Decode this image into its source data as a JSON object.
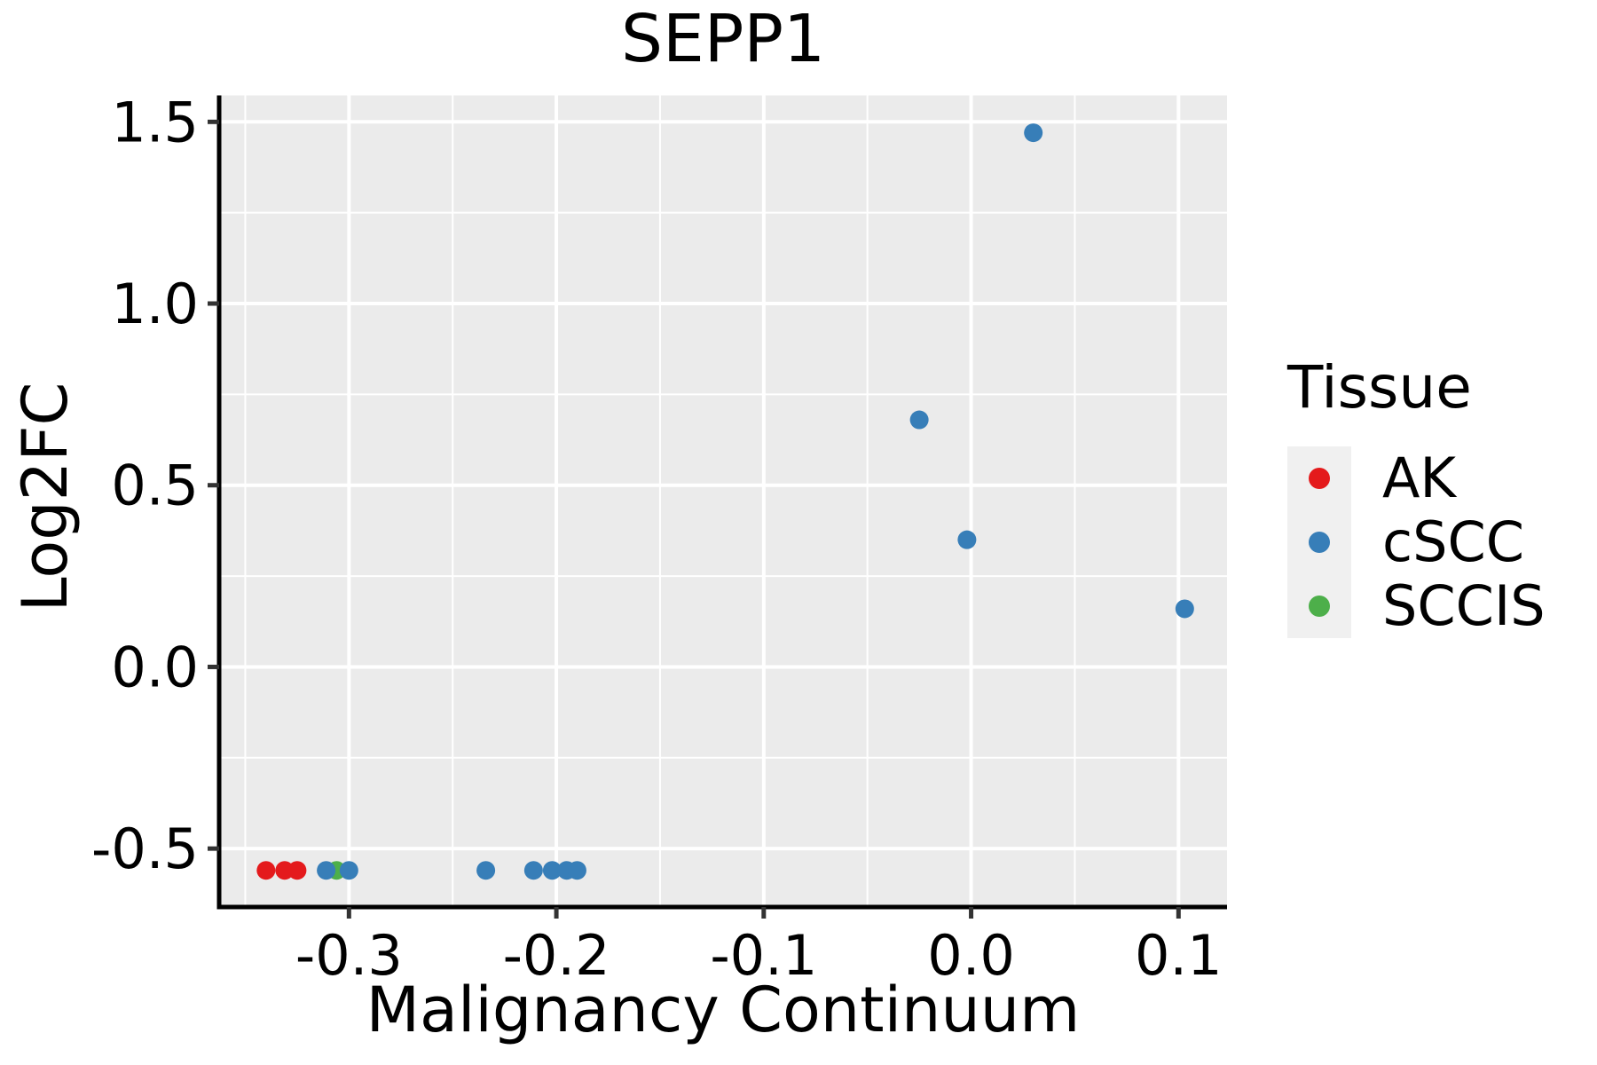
{
  "figure": {
    "background": "#ffffff"
  },
  "legend": {
    "title": "Tissue",
    "items": [
      {
        "label": "AK",
        "color": "#e41a1c"
      },
      {
        "label": "cSCC",
        "color": "#377eb8"
      },
      {
        "label": "SCCIS",
        "color": "#4daf4a"
      }
    ]
  },
  "style": {
    "panel_bg": "#ebebeb",
    "grid_color": "#ffffff",
    "axis_color": "#000000",
    "tick_color": "#333333",
    "text_color": "#000000",
    "legend_key_bg": "#f0f0f0"
  },
  "chart_data": {
    "type": "scatter",
    "title": "SEPP1",
    "xlabel": "Malignancy Continuum",
    "ylabel": "Log2FC",
    "xlim": [
      -0.3626,
      0.1234
    ],
    "ylim": [
      -0.6608,
      1.5728
    ],
    "grid": true,
    "legend_position": "right",
    "x_ticks": [
      {
        "v": -0.3,
        "label": "-0.3"
      },
      {
        "v": -0.2,
        "label": "-0.2"
      },
      {
        "v": -0.1,
        "label": "-0.1"
      },
      {
        "v": 0.0,
        "label": "0.0"
      },
      {
        "v": 0.1,
        "label": "0.1"
      }
    ],
    "y_ticks": [
      {
        "v": 1.5,
        "label": "1.5"
      },
      {
        "v": 1.0,
        "label": "1.0"
      },
      {
        "v": 0.5,
        "label": "0.5"
      },
      {
        "v": 0.0,
        "label": "0.0"
      },
      {
        "v": -0.5,
        "label": "-0.5"
      }
    ],
    "x_minor_ticks": [
      -0.35,
      -0.25,
      -0.15,
      -0.05,
      0.05
    ],
    "y_minor_ticks": [
      1.25,
      0.75,
      0.25,
      -0.25
    ],
    "series": [
      {
        "name": "AK",
        "color": "#e41a1c",
        "points": [
          [
            -0.34,
            -0.56
          ],
          [
            -0.331,
            -0.56
          ],
          [
            -0.325,
            -0.56
          ]
        ]
      },
      {
        "name": "SCCIS",
        "color": "#4daf4a",
        "points": [
          [
            -0.306,
            -0.56
          ]
        ]
      },
      {
        "name": "cSCC",
        "color": "#377eb8",
        "points": [
          [
            -0.311,
            -0.56
          ],
          [
            -0.3,
            -0.56
          ],
          [
            -0.234,
            -0.56
          ],
          [
            -0.211,
            -0.56
          ],
          [
            -0.202,
            -0.56
          ],
          [
            -0.195,
            -0.56
          ],
          [
            -0.19,
            -0.56
          ],
          [
            -0.025,
            0.68
          ],
          [
            -0.002,
            0.35
          ],
          [
            0.03,
            1.47
          ],
          [
            0.103,
            0.16
          ]
        ]
      }
    ]
  }
}
